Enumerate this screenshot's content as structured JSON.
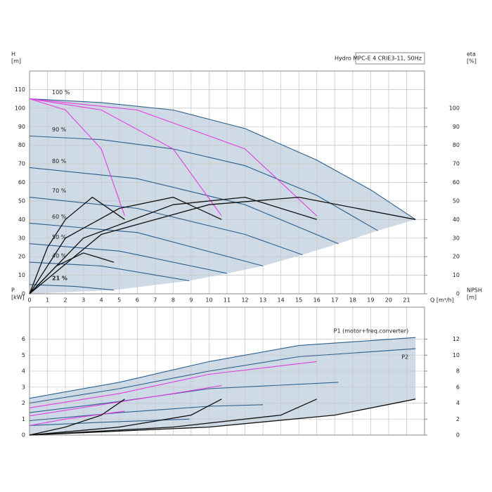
{
  "chart_data": [
    {
      "type": "line",
      "title": "Hydro MPC-E 4 CRIE3-11, 50Hz",
      "ylabel": "H",
      "yunit": "[m]",
      "y2label": "eta",
      "y2unit": "[%]",
      "xlabel": "Q [m³/h]",
      "xlim": [
        0,
        22
      ],
      "xticks": [
        0,
        1,
        2,
        3,
        4,
        5,
        6,
        7,
        8,
        9,
        10,
        11,
        12,
        13,
        14,
        15,
        16,
        17,
        18,
        19,
        20,
        21
      ],
      "ylim": [
        0,
        120
      ],
      "yticks": [
        0,
        10,
        20,
        30,
        40,
        50,
        60,
        70,
        80,
        90,
        100,
        110
      ],
      "y2lim": [
        0,
        120
      ],
      "y2ticks": [
        0,
        10,
        20,
        30,
        40,
        50,
        60,
        70,
        80,
        90,
        100
      ],
      "grid": true,
      "series": [
        {
          "name": "100 %",
          "color": "#2b5f8e",
          "x": [
            0,
            4,
            8,
            12,
            16,
            19,
            21.5
          ],
          "values": [
            105,
            103,
            99,
            89,
            72,
            56,
            40
          ]
        },
        {
          "name": "90 %",
          "color": "#2b5f8e",
          "x": [
            0,
            4,
            8,
            12,
            16,
            19.4
          ],
          "values": [
            85,
            83,
            78,
            69,
            53,
            34
          ]
        },
        {
          "name": "80 %",
          "color": "#2b5f8e",
          "x": [
            0,
            6,
            12,
            17.2
          ],
          "values": [
            68,
            62,
            48,
            27
          ]
        },
        {
          "name": "70 %",
          "color": "#2b5f8e",
          "x": [
            0,
            6,
            12,
            15.2
          ],
          "values": [
            52,
            46,
            32,
            21
          ]
        },
        {
          "name": "60 %",
          "color": "#2b5f8e",
          "x": [
            0,
            6,
            13
          ],
          "values": [
            38,
            33,
            15
          ]
        },
        {
          "name": "50 %",
          "color": "#2b5f8e",
          "x": [
            0,
            5,
            11
          ],
          "values": [
            27,
            23,
            11
          ]
        },
        {
          "name": "40 %",
          "color": "#2b5f8e",
          "x": [
            0,
            4,
            8.9
          ],
          "values": [
            17,
            15,
            7
          ]
        },
        {
          "name": "21 %",
          "color": "#2b5f8e",
          "x": [
            0,
            2.5,
            4.7
          ],
          "values": [
            5,
            4,
            2
          ]
        },
        {
          "color": "#e23ee2",
          "x": [
            0,
            2,
            4,
            5.3
          ],
          "values": [
            105,
            99,
            78,
            42
          ]
        },
        {
          "color": "#e23ee2",
          "x": [
            0,
            4,
            8,
            10.7
          ],
          "values": [
            105,
            99,
            78,
            42
          ]
        },
        {
          "color": "#e23ee2",
          "x": [
            0,
            6,
            12,
            16
          ],
          "values": [
            105,
            99,
            78,
            42
          ]
        },
        {
          "color": "#111111",
          "axis": "y2",
          "x": [
            0,
            1,
            2,
            3.5,
            5.3
          ],
          "values": [
            0,
            25,
            40,
            52,
            40
          ]
        },
        {
          "color": "#111111",
          "axis": "y2",
          "x": [
            0,
            2,
            5,
            8,
            10.7
          ],
          "values": [
            0,
            30,
            46,
            52,
            40
          ]
        },
        {
          "color": "#111111",
          "axis": "y2",
          "x": [
            0,
            3,
            8,
            12,
            16
          ],
          "values": [
            0,
            30,
            48,
            52,
            40
          ]
        },
        {
          "color": "#111111",
          "axis": "y2",
          "x": [
            0,
            4,
            10,
            15,
            21.5
          ],
          "values": [
            0,
            32,
            48,
            52,
            40
          ]
        },
        {
          "color": "#111111",
          "axis": "y2",
          "x": [
            0,
            1.5,
            3,
            4.7
          ],
          "values": [
            0,
            15,
            22,
            17
          ]
        }
      ]
    },
    {
      "type": "line",
      "ylabel": "P",
      "yunit": "[kW]",
      "y2label": "NPSH",
      "y2unit": "[m]",
      "xlim": [
        0,
        22
      ],
      "xticks": [
        0,
        1,
        2,
        3,
        4,
        5,
        6,
        7,
        8,
        9,
        10,
        11,
        12,
        13,
        14,
        15,
        16,
        17,
        18,
        19,
        20,
        21
      ],
      "ylim": [
        0,
        8
      ],
      "yticks": [
        0,
        1,
        2,
        3,
        4,
        5,
        6
      ],
      "y2lim": [
        0,
        16
      ],
      "y2ticks": [
        0,
        2,
        4,
        6,
        8,
        10,
        12
      ],
      "grid": true,
      "series": [
        {
          "name": "P1 (motor+freq.converter)",
          "color": "#2b5f8e",
          "x": [
            0,
            5,
            10,
            15,
            21.5
          ],
          "values": [
            2.3,
            3.3,
            4.6,
            5.6,
            6.1
          ]
        },
        {
          "name": "P2",
          "color": "#2b5f8e",
          "x": [
            0,
            5,
            10,
            15,
            21.5
          ],
          "values": [
            2.0,
            2.9,
            4.0,
            4.9,
            5.4
          ]
        },
        {
          "color": "#2b5f8e",
          "x": [
            0,
            5,
            10,
            17.2
          ],
          "values": [
            1.4,
            2.1,
            2.9,
            3.3
          ]
        },
        {
          "color": "#2b5f8e",
          "x": [
            0,
            5,
            10,
            13
          ],
          "values": [
            0.9,
            1.4,
            1.8,
            1.9
          ]
        },
        {
          "color": "#2b5f8e",
          "x": [
            0,
            4,
            8.9
          ],
          "values": [
            0.6,
            0.8,
            1.0
          ]
        },
        {
          "color": "#e23ee2",
          "x": [
            0,
            5,
            10,
            16
          ],
          "values": [
            1.7,
            2.6,
            3.8,
            4.6
          ]
        },
        {
          "color": "#e23ee2",
          "x": [
            0,
            4,
            8,
            10.7
          ],
          "values": [
            1.2,
            1.9,
            2.6,
            3.1
          ]
        },
        {
          "color": "#e23ee2",
          "x": [
            0,
            2,
            4,
            5.3
          ],
          "values": [
            0.6,
            1.0,
            1.3,
            1.5
          ]
        },
        {
          "color": "#111111",
          "axis": "y2",
          "x": [
            0,
            2,
            4,
            5.3
          ],
          "values": [
            0,
            1,
            2.5,
            4.5
          ]
        },
        {
          "color": "#111111",
          "axis": "y2",
          "x": [
            0,
            5,
            9,
            10.7
          ],
          "values": [
            0,
            1,
            2.5,
            4.5
          ]
        },
        {
          "color": "#111111",
          "axis": "y2",
          "x": [
            0,
            8,
            14,
            16
          ],
          "values": [
            0,
            1,
            2.5,
            4.5
          ]
        },
        {
          "color": "#111111",
          "axis": "y2",
          "x": [
            0,
            10,
            17,
            21.5
          ],
          "values": [
            0,
            1,
            2.5,
            4.5
          ]
        }
      ]
    }
  ]
}
